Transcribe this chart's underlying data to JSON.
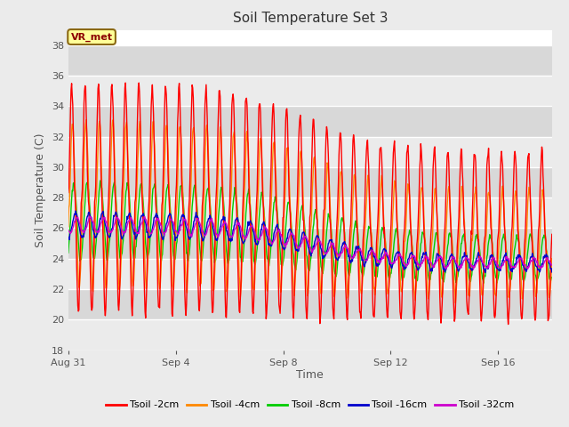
{
  "title": "Soil Temperature Set 3",
  "xlabel": "Time",
  "ylabel": "Soil Temperature (C)",
  "ylim": [
    18,
    39
  ],
  "yticks": [
    18,
    20,
    22,
    24,
    26,
    28,
    30,
    32,
    34,
    36,
    38
  ],
  "bg_light": "#ebebeb",
  "bg_dark": "#d8d8d8",
  "grid_color": "#ffffff",
  "annotation_text": "VR_met",
  "annotation_bg": "#ffff99",
  "annotation_border": "#8b6914",
  "colors": {
    "2cm": "#ff0000",
    "4cm": "#ff8800",
    "8cm": "#00cc00",
    "16cm": "#0000cc",
    "32cm": "#cc00cc"
  },
  "legend_labels": [
    "Tsoil -2cm",
    "Tsoil -4cm",
    "Tsoil -8cm",
    "Tsoil -16cm",
    "Tsoil -32cm"
  ],
  "x_tick_labels": [
    "Aug 31",
    "Sep 4",
    "Sep 8",
    "Sep 12",
    "Sep 16"
  ],
  "x_tick_positions": [
    0,
    4,
    8,
    12,
    16
  ],
  "n_days": 18,
  "samples_per_day": 48,
  "figsize": [
    6.4,
    4.8
  ],
  "dpi": 100
}
